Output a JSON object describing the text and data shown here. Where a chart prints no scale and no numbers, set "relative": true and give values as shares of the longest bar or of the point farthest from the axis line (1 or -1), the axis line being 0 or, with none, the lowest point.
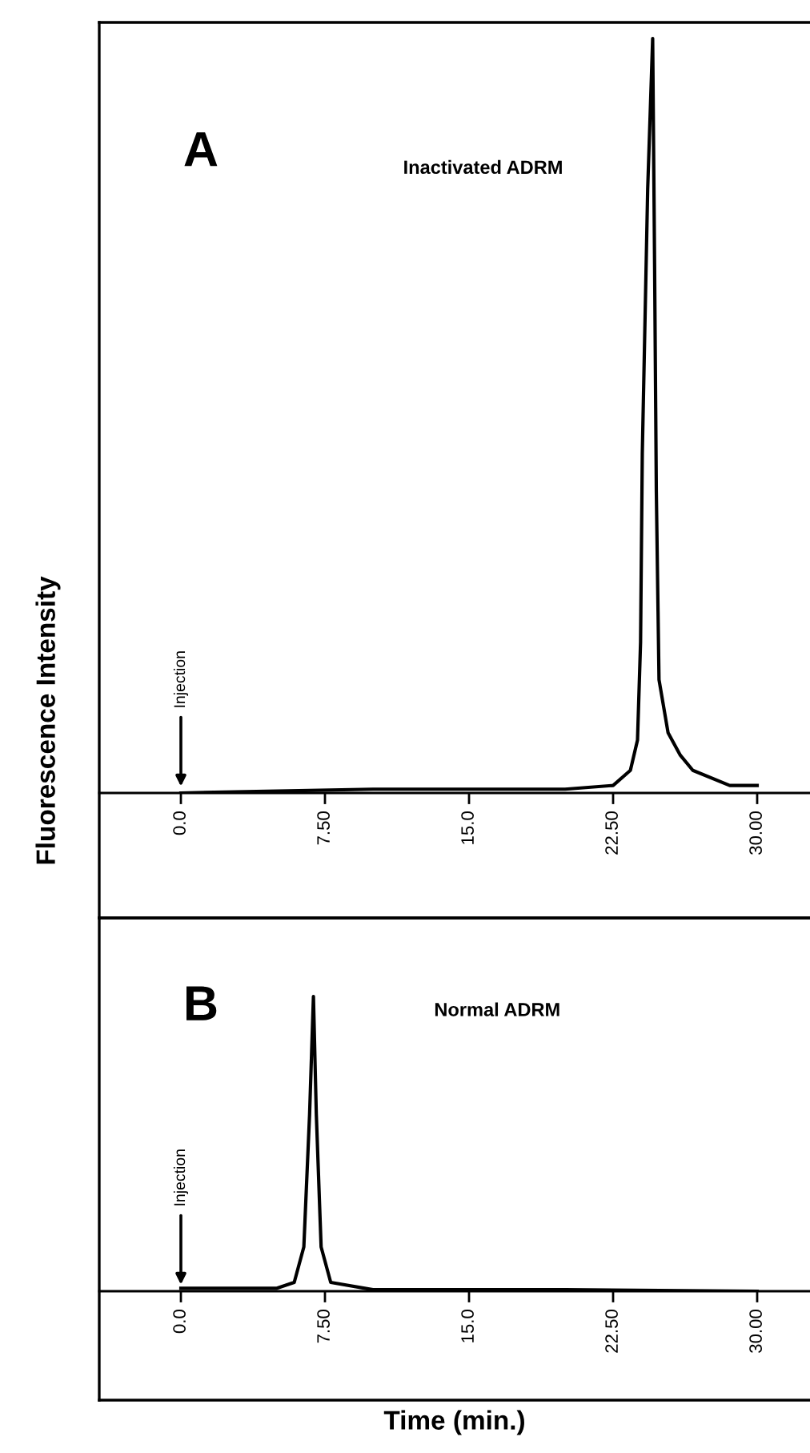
{
  "chart_data": [
    {
      "type": "line",
      "title": "A",
      "ylabel": "Fluorescence Intensity",
      "relative": true,
      "tick_labels": "x",
      "xlim": [
        -4.25,
        32.75
      ],
      "xticks": [
        {
          "value": 0,
          "label": "0.0"
        },
        {
          "value": 7.5,
          "label": "7.50"
        },
        {
          "value": 15,
          "label": "15.0"
        },
        {
          "value": 22.5,
          "label": "22.50"
        },
        {
          "value": 30,
          "label": "30.00"
        }
      ],
      "series": [
        {
          "color": "#000000",
          "x": [
            0,
            10,
            20,
            22.5,
            23.4,
            23.77,
            23.93,
            24.02,
            24.3,
            24.56,
            24.66,
            24.75,
            24.89,
            25.36,
            26.0,
            26.65,
            28.57,
            30
          ],
          "values": [
            0,
            0.005,
            0.005,
            0.01,
            0.03,
            0.07,
            0.2,
            0.45,
            0.8,
            1,
            0.7,
            0.4,
            0.15,
            0.08,
            0.05,
            0.03,
            0.01,
            0.01
          ]
        }
      ],
      "annotations": [
        "Inactivated ADRM",
        {
          "text": "Injection",
          "x": 0,
          "y": 0
        }
      ]
    },
    {
      "type": "line",
      "title": "B",
      "xlabel": "Time (min.)",
      "relative": true,
      "tick_labels": "x",
      "xlim": [
        -4.25,
        32.75
      ],
      "xticks": [
        {
          "value": 0,
          "label": "0.0"
        },
        {
          "value": 7.5,
          "label": "7.50"
        },
        {
          "value": 15,
          "label": "15.0"
        },
        {
          "value": 22.5,
          "label": "22.50"
        },
        {
          "value": 30,
          "label": "30.00"
        }
      ],
      "series": [
        {
          "color": "#000000",
          "x": [
            0,
            5,
            5.9,
            6.4,
            6.7,
            6.9,
            7.05,
            7.3,
            7.8,
            10,
            20,
            30
          ],
          "values": [
            0.01,
            0.01,
            0.03,
            0.15,
            0.6,
            1,
            0.6,
            0.15,
            0.03,
            0.005,
            0.005,
            0
          ]
        }
      ],
      "annotations": [
        "Normal ADRM",
        {
          "text": "Injection",
          "x": 0,
          "y": 0
        }
      ]
    }
  ]
}
